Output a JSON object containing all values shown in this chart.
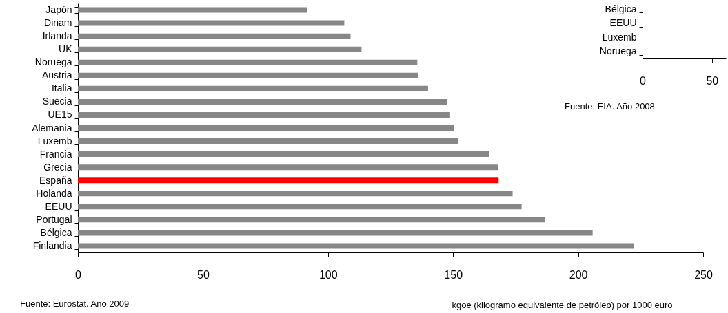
{
  "chart_data": [
    {
      "type": "bar",
      "orientation": "horizontal",
      "categories": [
        "Japón",
        "Dinam",
        "Irlanda",
        "UK",
        "Noruega",
        "Austria",
        "Italia",
        "Suecia",
        "UE15",
        "Alemania",
        "Luxemb",
        "Francia",
        "Grecia",
        "España",
        "Holanda",
        "EEUU",
        "Portugal",
        "Bélgica",
        "Finlandia"
      ],
      "values": [
        91.7,
        106.5,
        109.0,
        113.4,
        135.7,
        136.0,
        140.0,
        147.6,
        148.8,
        150.5,
        151.9,
        164.3,
        167.9,
        168.2,
        173.8,
        177.4,
        186.6,
        205.8,
        222.2
      ],
      "colors": [
        "#878787",
        "#878787",
        "#878787",
        "#878787",
        "#878787",
        "#878787",
        "#878787",
        "#878787",
        "#878787",
        "#878787",
        "#878787",
        "#878787",
        "#878787",
        "#ff0000",
        "#878787",
        "#878787",
        "#878787",
        "#878787",
        "#878787"
      ],
      "xlim": [
        0,
        250
      ],
      "xticks": [
        0,
        50,
        100,
        150,
        200,
        250
      ],
      "xlabel": "kgoe (kilogramo equivalente de petróleo) por 1000 euro",
      "grid": false,
      "annotations": [
        "Fuente: Eurostat. Año 2009"
      ]
    },
    {
      "type": "bar",
      "orientation": "horizontal",
      "categories": [
        "Bélgica",
        "EEUU",
        "Luxemb",
        "Noruega"
      ],
      "values": [
        null,
        null,
        null,
        null
      ],
      "xlim": [
        0,
        60
      ],
      "xticks": [
        0,
        50
      ],
      "grid": false,
      "annotations": [
        "Fuente: EIA. Año 2008"
      ]
    }
  ]
}
